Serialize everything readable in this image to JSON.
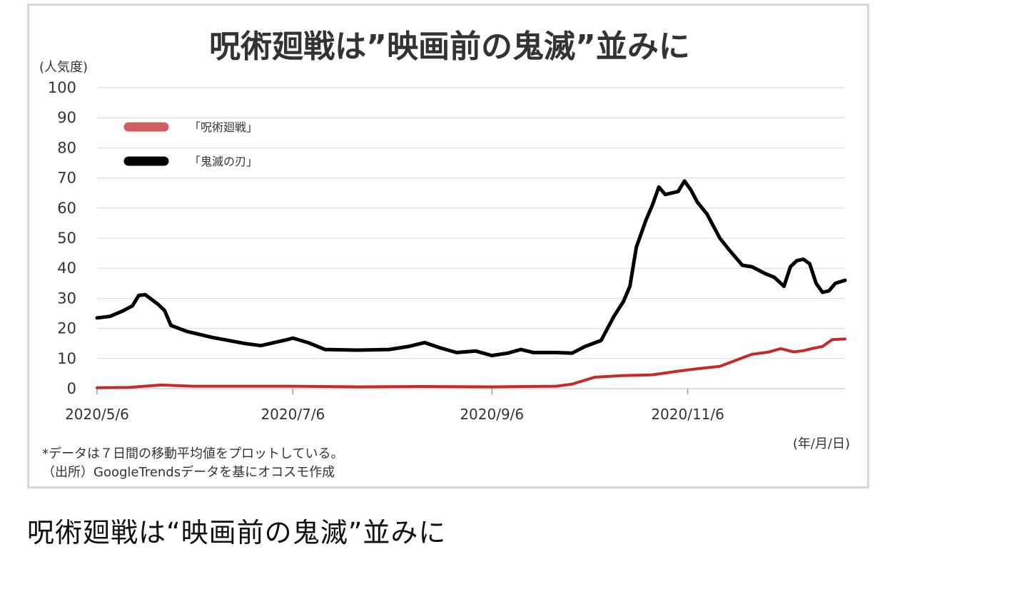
{
  "caption": "呪術廻戦は“映画前の鬼滅”並みに",
  "chart_data": {
    "type": "line",
    "title": "呪術廻戦は”映画前の鬼滅”並みに",
    "ylabel": "(人気度)",
    "xlabel": "(年/月/日)",
    "ylim": [
      0,
      100
    ],
    "yticks": [
      0,
      10,
      20,
      30,
      40,
      50,
      60,
      70,
      80,
      90,
      100
    ],
    "grid": true,
    "legend_position": "top-left",
    "x_start": "2020/5/6",
    "x_end": "2020/12/25",
    "xticks": [
      {
        "label": "2020/5/6",
        "date": "2020/5/6"
      },
      {
        "label": "2020/7/6",
        "date": "2020/7/6"
      },
      {
        "label": "2020/9/6",
        "date": "2020/9/6"
      },
      {
        "label": "2020/11/6",
        "date": "2020/11/6"
      }
    ],
    "notes": [
      "*データは７日間の移動平均値をプロットしている。",
      "（出所）GoogleTrendsデータを基にオコスモ作成"
    ],
    "series": [
      {
        "name": "「呪術廻戦」",
        "color": "#c42a2a",
        "legend_color": "#d06060",
        "points": [
          [
            "2020/5/6",
            0.3
          ],
          [
            "2020/5/16",
            0.4
          ],
          [
            "2020/5/26",
            1.2
          ],
          [
            "2020/6/5",
            0.8
          ],
          [
            "2020/6/25",
            0.8
          ],
          [
            "2020/7/6",
            0.8
          ],
          [
            "2020/7/26",
            0.6
          ],
          [
            "2020/8/15",
            0.7
          ],
          [
            "2020/9/6",
            0.6
          ],
          [
            "2020/9/26",
            0.8
          ],
          [
            "2020/10/1",
            1.5
          ],
          [
            "2020/10/8",
            3.8
          ],
          [
            "2020/10/16",
            4.3
          ],
          [
            "2020/10/26",
            4.6
          ],
          [
            "2020/11/3",
            5.8
          ],
          [
            "2020/11/9",
            6.6
          ],
          [
            "2020/11/16",
            7.4
          ],
          [
            "2020/11/21",
            9.4
          ],
          [
            "2020/11/26",
            11.4
          ],
          [
            "2020/12/1",
            12.1
          ],
          [
            "2020/12/5",
            13.3
          ],
          [
            "2020/12/9",
            12.2
          ],
          [
            "2020/12/12",
            12.6
          ],
          [
            "2020/12/15",
            13.4
          ],
          [
            "2020/12/18",
            14.0
          ],
          [
            "2020/12/21",
            16.3
          ],
          [
            "2020/12/25",
            16.5
          ]
        ]
      },
      {
        "name": "「鬼滅の刃」",
        "color": "#000000",
        "legend_color": "#000000",
        "points": [
          [
            "2020/5/6",
            23.5
          ],
          [
            "2020/5/10",
            24.0
          ],
          [
            "2020/5/14",
            25.8
          ],
          [
            "2020/5/17",
            27.5
          ],
          [
            "2020/5/19",
            31.0
          ],
          [
            "2020/5/21",
            31.2
          ],
          [
            "2020/5/25",
            28.0
          ],
          [
            "2020/5/27",
            26.0
          ],
          [
            "2020/5/29",
            21.0
          ],
          [
            "2020/6/3",
            19.0
          ],
          [
            "2020/6/11",
            17.0
          ],
          [
            "2020/6/21",
            15.0
          ],
          [
            "2020/6/26",
            14.3
          ],
          [
            "2020/7/1",
            15.5
          ],
          [
            "2020/7/4",
            16.2
          ],
          [
            "2020/7/6",
            16.8
          ],
          [
            "2020/7/11",
            15.2
          ],
          [
            "2020/7/16",
            13.0
          ],
          [
            "2020/7/26",
            12.8
          ],
          [
            "2020/8/5",
            13.0
          ],
          [
            "2020/8/11",
            14.0
          ],
          [
            "2020/8/16",
            15.3
          ],
          [
            "2020/8/21",
            13.5
          ],
          [
            "2020/8/26",
            12.0
          ],
          [
            "2020/9/1",
            12.5
          ],
          [
            "2020/9/6",
            11.0
          ],
          [
            "2020/9/11",
            11.8
          ],
          [
            "2020/9/15",
            13.0
          ],
          [
            "2020/9/19",
            12.0
          ],
          [
            "2020/9/26",
            12.0
          ],
          [
            "2020/10/1",
            11.8
          ],
          [
            "2020/10/5",
            14.0
          ],
          [
            "2020/10/10",
            16.0
          ],
          [
            "2020/10/14",
            24.0
          ],
          [
            "2020/10/17",
            29.0
          ],
          [
            "2020/10/19",
            34.0
          ],
          [
            "2020/10/21",
            47.0
          ],
          [
            "2020/10/24",
            56.0
          ],
          [
            "2020/10/26",
            61.0
          ],
          [
            "2020/10/28",
            67.0
          ],
          [
            "2020/10/30",
            64.5
          ],
          [
            "2020/11/3",
            65.5
          ],
          [
            "2020/11/5",
            69.0
          ],
          [
            "2020/11/7",
            66.0
          ],
          [
            "2020/11/9",
            62.0
          ],
          [
            "2020/11/12",
            58.0
          ],
          [
            "2020/11/16",
            50.0
          ],
          [
            "2020/11/19",
            46.0
          ],
          [
            "2020/11/23",
            41.0
          ],
          [
            "2020/11/26",
            40.5
          ],
          [
            "2020/11/30",
            38.3
          ],
          [
            "2020/12/3",
            37.0
          ],
          [
            "2020/12/6",
            34.0
          ],
          [
            "2020/12/8",
            40.5
          ],
          [
            "2020/12/10",
            42.5
          ],
          [
            "2020/12/12",
            43.0
          ],
          [
            "2020/12/14",
            41.5
          ],
          [
            "2020/12/16",
            35.0
          ],
          [
            "2020/12/18",
            32.0
          ],
          [
            "2020/12/20",
            32.5
          ],
          [
            "2020/12/22",
            35.0
          ],
          [
            "2020/12/25",
            36.0
          ]
        ]
      }
    ]
  }
}
